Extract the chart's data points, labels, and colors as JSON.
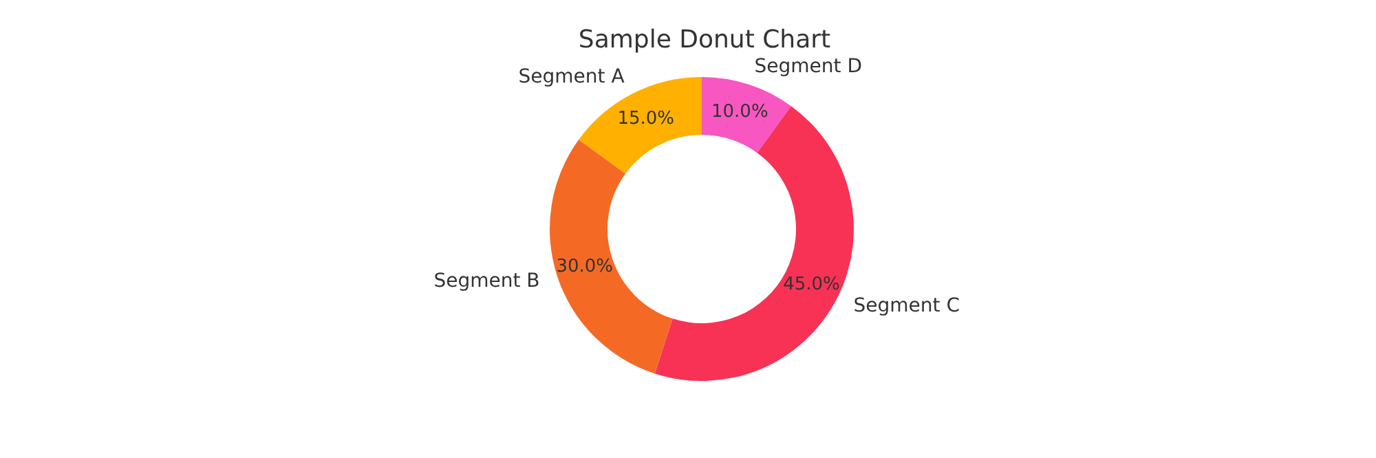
{
  "chart_data": {
    "type": "donut",
    "title": "Sample Donut Chart",
    "categories": [
      "Segment A",
      "Segment B",
      "Segment C",
      "Segment D"
    ],
    "values": [
      15,
      30,
      45,
      10
    ],
    "colors": [
      "#ffb000",
      "#f46a25",
      "#f73255",
      "#f857c1"
    ],
    "value_labels": [
      "15.0%",
      "30.0%",
      "45.0%",
      "10.0%"
    ],
    "legend": false
  }
}
